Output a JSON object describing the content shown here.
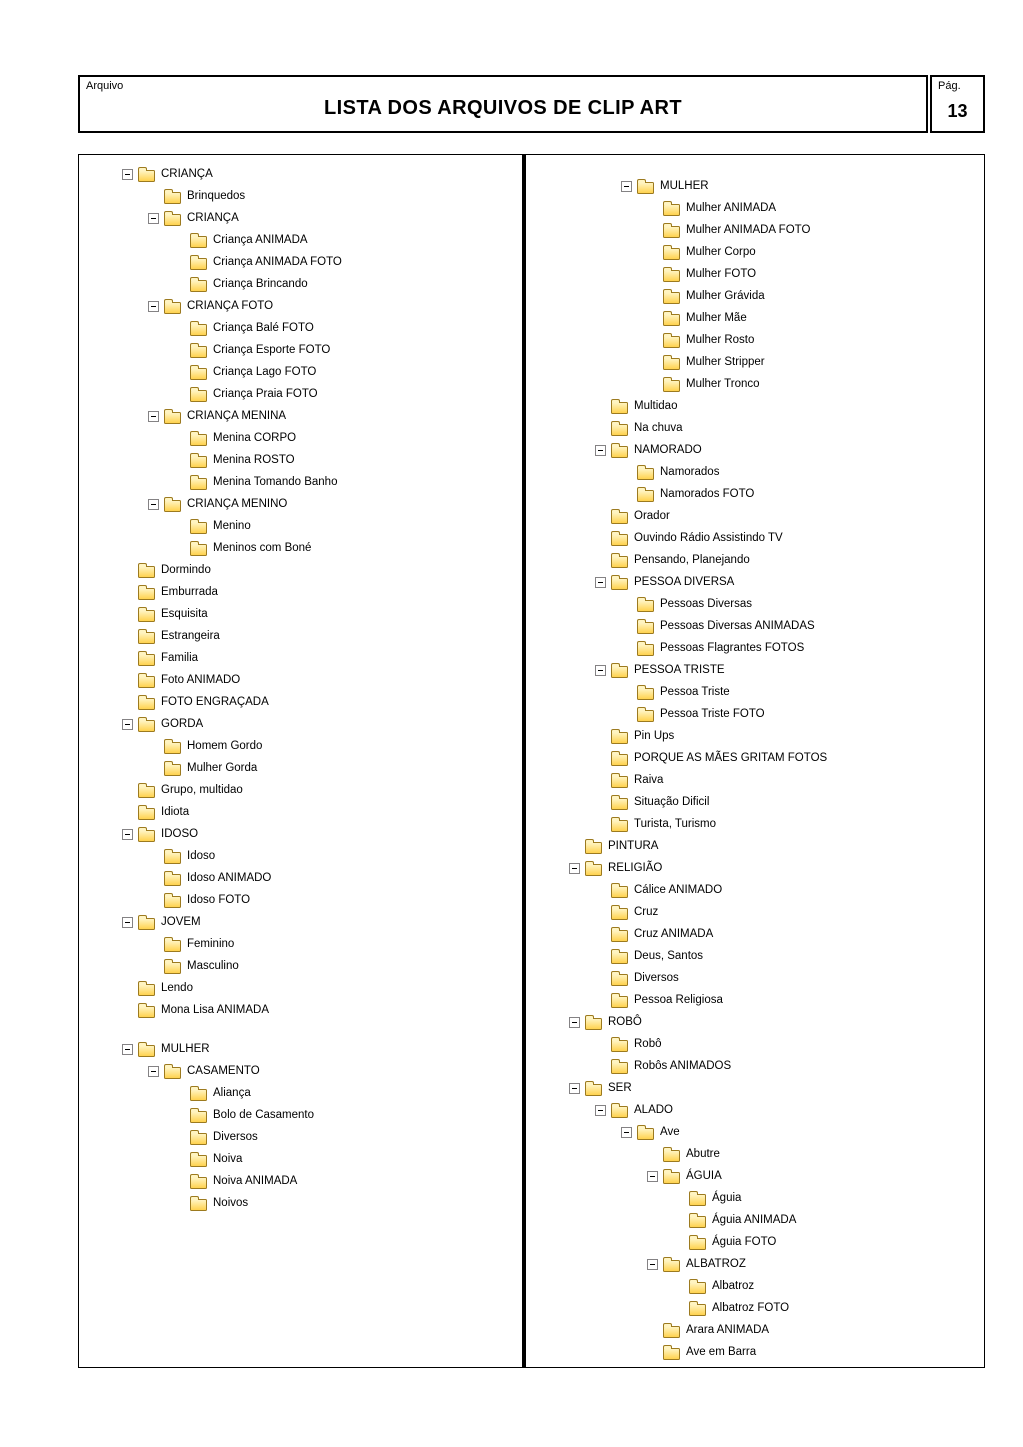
{
  "header": {
    "corner_label": "Arquivo",
    "title": "LISTA DOS ARQUIVOS DE CLIP ART",
    "page_label": "Pág.",
    "page_number": "13"
  },
  "colors": {
    "folder_top": "#fff4c1",
    "folder_bottom": "#ffd24e",
    "folder_outline": "#9c7a1f",
    "expand_box_border": "#848284",
    "line": "#000000"
  },
  "tree": {
    "left_column": [
      {
        "label": "CRIANÇA",
        "level": 1,
        "box": true
      },
      {
        "label": "Brinquedos",
        "level": 2,
        "box": false
      },
      {
        "label": "CRIANÇA",
        "level": 2,
        "box": true
      },
      {
        "label": "Criança ANIMADA",
        "level": 3,
        "box": false
      },
      {
        "label": "Criança ANIMADA FOTO",
        "level": 3,
        "box": false
      },
      {
        "label": "Criança Brincando",
        "level": 3,
        "box": false
      },
      {
        "label": "CRIANÇA FOTO",
        "level": 2,
        "box": true
      },
      {
        "label": "Criança Balé FOTO",
        "level": 3,
        "box": false
      },
      {
        "label": "Criança Esporte FOTO",
        "level": 3,
        "box": false
      },
      {
        "label": "Criança Lago FOTO",
        "level": 3,
        "box": false
      },
      {
        "label": "Criança Praia FOTO",
        "level": 3,
        "box": false
      },
      {
        "label": "CRIANÇA MENINA",
        "level": 2,
        "box": true
      },
      {
        "label": "Menina CORPO",
        "level": 3,
        "box": false
      },
      {
        "label": "Menina ROSTO",
        "level": 3,
        "box": false
      },
      {
        "label": "Menina Tomando Banho",
        "level": 3,
        "box": false
      },
      {
        "label": "CRIANÇA MENINO",
        "level": 2,
        "box": true
      },
      {
        "label": "Menino",
        "level": 3,
        "box": false
      },
      {
        "label": "Meninos com Boné",
        "level": 3,
        "box": false
      },
      {
        "label": "Dormindo",
        "level": 1,
        "box": false
      },
      {
        "label": "Emburrada",
        "level": 1,
        "box": false
      },
      {
        "label": "Esquisita",
        "level": 1,
        "box": false
      },
      {
        "label": "Estrangeira",
        "level": 1,
        "box": false
      },
      {
        "label": "Familia",
        "level": 1,
        "box": false
      },
      {
        "label": "Foto ANIMADO",
        "level": 1,
        "box": false
      },
      {
        "label": "FOTO ENGRAÇADA",
        "level": 1,
        "box": false
      },
      {
        "label": "GORDA",
        "level": 1,
        "box": true
      },
      {
        "label": "Homem Gordo",
        "level": 2,
        "box": false
      },
      {
        "label": "Mulher Gorda",
        "level": 2,
        "box": false
      },
      {
        "label": "Grupo, multidao",
        "level": 1,
        "box": false
      },
      {
        "label": "Idiota",
        "level": 1,
        "box": false
      },
      {
        "label": "IDOSO",
        "level": 1,
        "box": true
      },
      {
        "label": "Idoso",
        "level": 2,
        "box": false
      },
      {
        "label": "Idoso ANIMADO",
        "level": 2,
        "box": false
      },
      {
        "label": "Idoso FOTO",
        "level": 2,
        "box": false
      },
      {
        "label": "JOVEM",
        "level": 1,
        "box": true
      },
      {
        "label": "Feminino",
        "level": 2,
        "box": false
      },
      {
        "label": "Masculino",
        "level": 2,
        "box": false
      },
      {
        "label": "Lendo",
        "level": 1,
        "box": false
      },
      {
        "label": "Mona Lisa ANIMADA",
        "level": 1,
        "box": false
      },
      {
        "spacer": true
      },
      {
        "label": "MULHER",
        "level": 1,
        "box": true
      },
      {
        "label": "CASAMENTO",
        "level": 2,
        "box": true
      },
      {
        "label": "Aliança",
        "level": 3,
        "box": false
      },
      {
        "label": "Bolo de Casamento",
        "level": 3,
        "box": false
      },
      {
        "label": "Diversos",
        "level": 3,
        "box": false
      },
      {
        "label": "Noiva",
        "level": 3,
        "box": false
      },
      {
        "label": "Noiva ANIMADA",
        "level": 3,
        "box": false
      },
      {
        "label": "Noivos",
        "level": 3,
        "box": false
      }
    ],
    "right_column": [
      {
        "label": "MULHER",
        "level": 2,
        "box": true
      },
      {
        "label": "Mulher ANIMADA",
        "level": 3,
        "box": false
      },
      {
        "label": "Mulher ANIMADA FOTO",
        "level": 3,
        "box": false
      },
      {
        "label": "Mulher Corpo",
        "level": 3,
        "box": false
      },
      {
        "label": "Mulher FOTO",
        "level": 3,
        "box": false
      },
      {
        "label": "Mulher Grávida",
        "level": 3,
        "box": false
      },
      {
        "label": "Mulher Mãe",
        "level": 3,
        "box": false
      },
      {
        "label": "Mulher Rosto",
        "level": 3,
        "box": false
      },
      {
        "label": "Mulher Stripper",
        "level": 3,
        "box": false
      },
      {
        "label": "Mulher Tronco",
        "level": 3,
        "box": false
      },
      {
        "label": "Multidao",
        "level": 1,
        "box": false
      },
      {
        "label": "Na chuva",
        "level": 1,
        "box": false
      },
      {
        "label": "NAMORADO",
        "level": 1,
        "box": true
      },
      {
        "label": "Namorados",
        "level": 2,
        "box": false
      },
      {
        "label": "Namorados FOTO",
        "level": 2,
        "box": false
      },
      {
        "label": "Orador",
        "level": 1,
        "box": false
      },
      {
        "label": "Ouvindo Rádio Assistindo TV",
        "level": 1,
        "box": false
      },
      {
        "label": "Pensando, Planejando",
        "level": 1,
        "box": false
      },
      {
        "label": "PESSOA DIVERSA",
        "level": 1,
        "box": true
      },
      {
        "label": "Pessoas Diversas",
        "level": 2,
        "box": false
      },
      {
        "label": "Pessoas Diversas ANIMADAS",
        "level": 2,
        "box": false
      },
      {
        "label": "Pessoas Flagrantes FOTOS",
        "level": 2,
        "box": false
      },
      {
        "label": "PESSOA TRISTE",
        "level": 1,
        "box": true
      },
      {
        "label": "Pessoa Triste",
        "level": 2,
        "box": false
      },
      {
        "label": "Pessoa Triste FOTO",
        "level": 2,
        "box": false
      },
      {
        "label": "Pin Ups",
        "level": 1,
        "box": false
      },
      {
        "label": "PORQUE AS MÃES GRITAM FOTOS",
        "level": 1,
        "box": false
      },
      {
        "label": "Raiva",
        "level": 1,
        "box": false
      },
      {
        "label": "Situação Dificil",
        "level": 1,
        "box": false
      },
      {
        "label": "Turista, Turismo",
        "level": 1,
        "box": false
      },
      {
        "label": "PINTURA",
        "level": 0,
        "box": false
      },
      {
        "label": "RELIGIÃO",
        "level": 0,
        "box": true
      },
      {
        "label": "Cálice ANIMADO",
        "level": 1,
        "box": false
      },
      {
        "label": "Cruz",
        "level": 1,
        "box": false
      },
      {
        "label": "Cruz ANIMADA",
        "level": 1,
        "box": false
      },
      {
        "label": "Deus, Santos",
        "level": 1,
        "box": false
      },
      {
        "label": "Diversos",
        "level": 1,
        "box": false
      },
      {
        "label": "Pessoa Religiosa",
        "level": 1,
        "box": false
      },
      {
        "label": "ROBÔ",
        "level": 0,
        "box": true
      },
      {
        "label": "Robô",
        "level": 1,
        "box": false
      },
      {
        "label": "Robôs ANIMADOS",
        "level": 1,
        "box": false
      },
      {
        "label": "SER",
        "level": 0,
        "box": true
      },
      {
        "label": "ALADO",
        "level": 1,
        "box": true
      },
      {
        "label": "Ave",
        "level": 2,
        "box": true
      },
      {
        "label": "Abutre",
        "level": 3,
        "box": false
      },
      {
        "label": "ÁGUIA",
        "level": 3,
        "box": true
      },
      {
        "label": "Águia",
        "level": 4,
        "box": false
      },
      {
        "label": "Águia ANIMADA",
        "level": 4,
        "box": false
      },
      {
        "label": "Águia FOTO",
        "level": 4,
        "box": false
      },
      {
        "label": "ALBATROZ",
        "level": 3,
        "box": true
      },
      {
        "label": "Albatroz",
        "level": 4,
        "box": false
      },
      {
        "label": "Albatroz FOTO",
        "level": 4,
        "box": false
      },
      {
        "label": "Arara ANIMADA",
        "level": 3,
        "box": false
      },
      {
        "label": "Ave em Barra",
        "level": 3,
        "box": false
      }
    ]
  }
}
